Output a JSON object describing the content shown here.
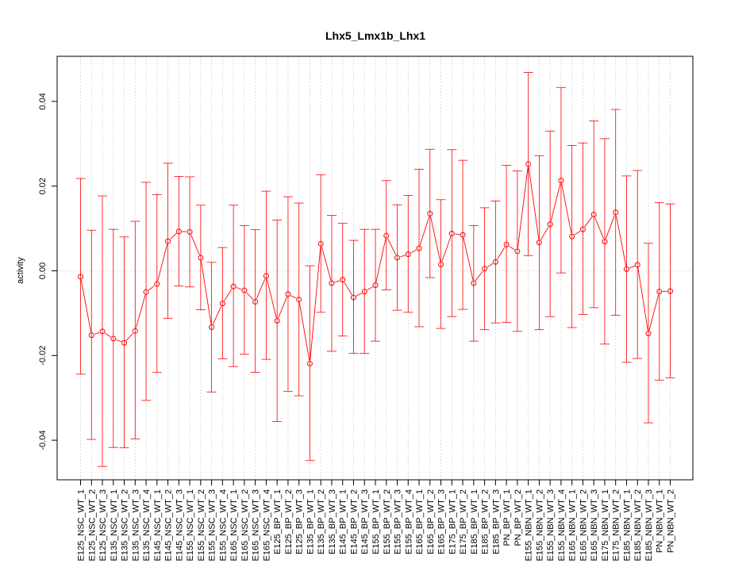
{
  "chart_data": {
    "type": "line",
    "title": "Lhx5_Lmx1b_Lhx1",
    "xlabel": "",
    "ylabel": "activity",
    "ylim": [
      -0.05,
      0.05
    ],
    "yticks": [
      -0.04,
      -0.02,
      0.0,
      0.02,
      0.04
    ],
    "ytick_labels": [
      "-0.04",
      "-0.02",
      "0.00",
      "0.02",
      "0.04"
    ],
    "grid": true,
    "reference_line": 0,
    "color": "#ff0000",
    "categories": [
      "E125_NSC_WT_1",
      "E125_NSC_WT_2",
      "E125_NSC_WT_3",
      "E135_NSC_WT_1",
      "E135_NSC_WT_2",
      "E135_NSC_WT_3",
      "E135_NSC_WT_4",
      "E145_NSC_WT_1",
      "E145_NSC_WT_2",
      "E145_NSC_WT_3",
      "E155_NSC_WT_1",
      "E155_NSC_WT_2",
      "E155_NSC_WT_3",
      "E155_NSC_WT_4",
      "E165_NSC_WT_1",
      "E165_NSC_WT_2",
      "E165_NSC_WT_3",
      "E165_NSC_WT_4",
      "E125_BP_WT_1",
      "E125_BP_WT_2",
      "E125_BP_WT_3",
      "E135_BP_WT_1",
      "E135_BP_WT_2",
      "E135_BP_WT_3",
      "E145_BP_WT_1",
      "E145_BP_WT_2",
      "E145_BP_WT_3",
      "E155_BP_WT_1",
      "E155_BP_WT_2",
      "E155_BP_WT_3",
      "E155_BP_WT_4",
      "E165_BP_WT_1",
      "E165_BP_WT_2",
      "E165_BP_WT_3",
      "E175_BP_WT_1",
      "E175_BP_WT_2",
      "E185_BP_WT_1",
      "E185_BP_WT_2",
      "E185_BP_WT_3",
      "PN_BP_WT_1",
      "PN_BP_WT_2",
      "E155_NBN_WT_1",
      "E155_NBN_WT_2",
      "E155_NBN_WT_3",
      "E155_NBN_WT_4",
      "E165_NBN_WT_1",
      "E165_NBN_WT_2",
      "E165_NBN_WT_3",
      "E175_NBN_WT_1",
      "E175_NBN_WT_2",
      "E185_NBN_WT_1",
      "E185_NBN_WT_2",
      "E185_NBN_WT_3",
      "PN_NBN_WT_1",
      "PN_NBN_WT_2"
    ],
    "values": [
      -0.0014,
      -0.0152,
      -0.0143,
      -0.016,
      -0.017,
      -0.0142,
      -0.005,
      -0.0031,
      0.007,
      0.0093,
      0.0092,
      0.0031,
      -0.0133,
      -0.0077,
      -0.0037,
      -0.0046,
      -0.0073,
      -0.0012,
      -0.0118,
      -0.0055,
      -0.0068,
      -0.0219,
      0.0064,
      -0.0029,
      -0.0021,
      -0.0063,
      -0.0049,
      -0.0034,
      0.0083,
      0.0031,
      0.0039,
      0.0053,
      0.0135,
      0.0015,
      0.0088,
      0.0085,
      -0.0029,
      0.0005,
      0.0021,
      0.0062,
      0.0046,
      0.0252,
      0.0067,
      0.011,
      0.0213,
      0.0081,
      0.0098,
      0.0133,
      0.0069,
      0.0138,
      0.0004,
      0.0014,
      -0.0148,
      -0.0049,
      -0.0048
    ],
    "upper": [
      0.0218,
      0.0096,
      0.0177,
      0.0098,
      0.008,
      0.0117,
      0.0209,
      0.018,
      0.0254,
      0.0223,
      0.0222,
      0.0155,
      0.002,
      0.0055,
      0.0155,
      0.0107,
      0.0097,
      0.0188,
      0.012,
      0.0175,
      0.016,
      0.0012,
      0.0227,
      0.0131,
      0.0112,
      0.0072,
      0.0098,
      0.0098,
      0.0213,
      0.0156,
      0.0178,
      0.024,
      0.0287,
      0.0168,
      0.0286,
      0.0261,
      0.0107,
      0.0149,
      0.0165,
      0.0249,
      0.0236,
      0.0468,
      0.0272,
      0.033,
      0.0433,
      0.0296,
      0.0302,
      0.0354,
      0.0312,
      0.0381,
      0.0224,
      0.0237,
      0.0065,
      0.0161,
      0.0158
    ],
    "lower": [
      -0.0244,
      -0.0398,
      -0.0462,
      -0.0417,
      -0.0418,
      -0.0397,
      -0.0306,
      -0.024,
      -0.0112,
      -0.0036,
      -0.0038,
      -0.0092,
      -0.0286,
      -0.0208,
      -0.0226,
      -0.0197,
      -0.024,
      -0.0209,
      -0.0356,
      -0.0285,
      -0.0295,
      -0.0448,
      -0.0098,
      -0.019,
      -0.0154,
      -0.0195,
      -0.0195,
      -0.0166,
      -0.0045,
      -0.0093,
      -0.0098,
      -0.0132,
      -0.0016,
      -0.0136,
      -0.0108,
      -0.0091,
      -0.0166,
      -0.0139,
      -0.0123,
      -0.0122,
      -0.0143,
      0.0036,
      -0.0139,
      -0.0108,
      -0.0005,
      -0.0134,
      -0.0103,
      -0.0087,
      -0.0173,
      -0.0105,
      -0.0216,
      -0.0207,
      -0.0359,
      -0.0258,
      -0.0253
    ]
  }
}
